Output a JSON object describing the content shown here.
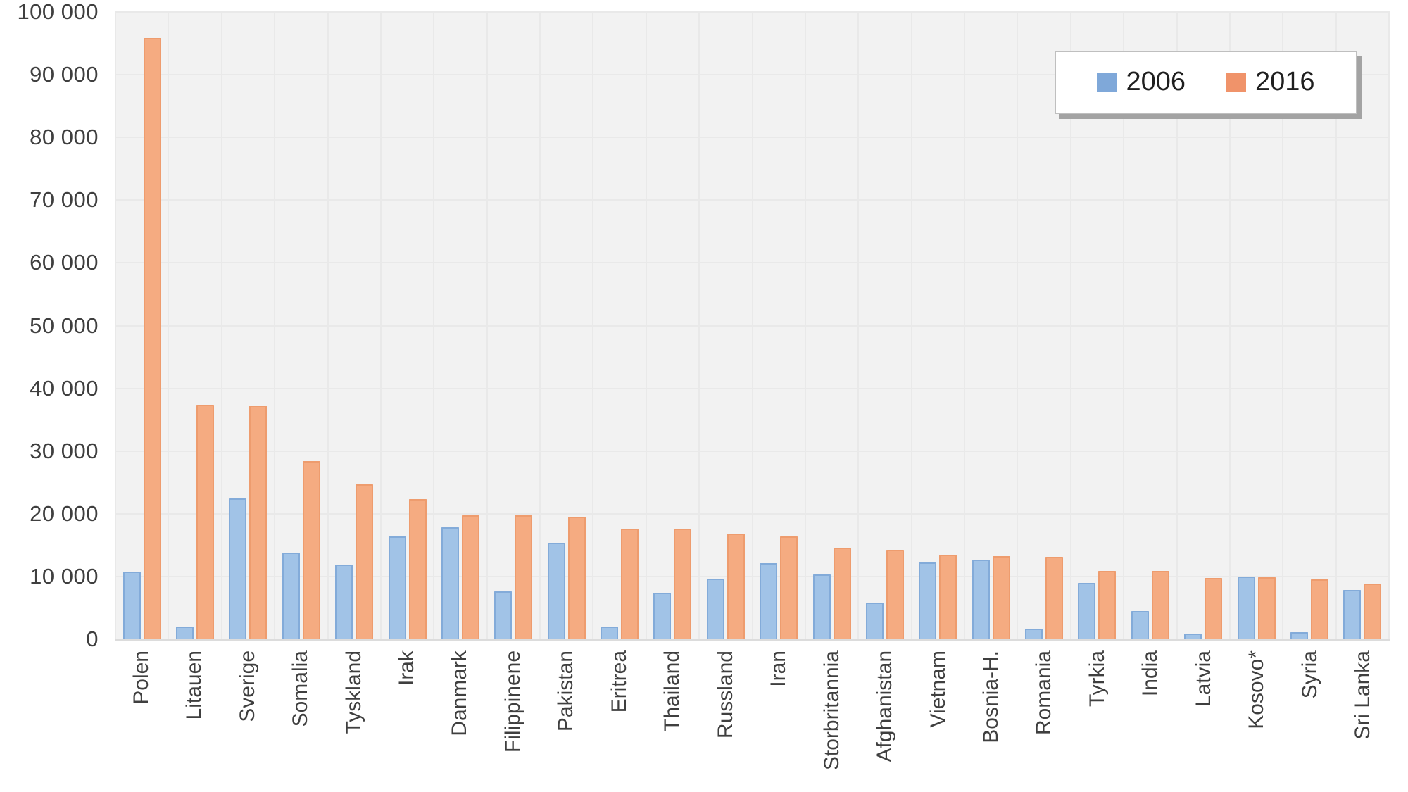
{
  "chart_data": {
    "type": "bar",
    "title": "",
    "xlabel": "",
    "ylabel": "",
    "grid": true,
    "plot_background": "#f2f2f2",
    "gridline_color": "#e9e9e9",
    "legend_position": "top-right",
    "ylim": [
      0,
      100000
    ],
    "ytick_step": 10000,
    "ytick_labels": [
      "0",
      "10 000",
      "20 000",
      "30 000",
      "40 000",
      "50 000",
      "60 000",
      "70 000",
      "80 000",
      "90 000",
      "100 000"
    ],
    "categories": [
      "Polen",
      "Litauen",
      "Sverige",
      "Somalia",
      "Tyskland",
      "Irak",
      "Danmark",
      "Filippinene",
      "Pakistan",
      "Eritrea",
      "Thailand",
      "Russland",
      "Iran",
      "Storbritannia",
      "Afghanistan",
      "Vietnam",
      "Bosnia-H.",
      "Romania",
      "Tyrkia",
      "India",
      "Latvia",
      "Kosovo*",
      "Syria",
      "Sri Lanka"
    ],
    "series": [
      {
        "name": "2006",
        "fill": "#a1c3e7",
        "border": "#83abd9",
        "legend_swatch": "#7fa8d9",
        "values": [
          10800,
          2000,
          22400,
          13800,
          11900,
          16400,
          17800,
          7600,
          15400,
          2000,
          7400,
          9700,
          12100,
          10300,
          5800,
          12200,
          12700,
          1700,
          9000,
          4500,
          900,
          10000,
          1100,
          7900
        ]
      },
      {
        "name": "2016",
        "fill": "#f5ab81",
        "border": "#ee9c6e",
        "legend_swatch": "#f0936a",
        "values": [
          95800,
          37400,
          37300,
          28400,
          24700,
          22300,
          19800,
          19800,
          19500,
          17600,
          17600,
          16800,
          16400,
          14600,
          14300,
          13500,
          13300,
          13100,
          10900,
          10900,
          9800,
          9900,
          9500,
          8900
        ]
      }
    ]
  }
}
